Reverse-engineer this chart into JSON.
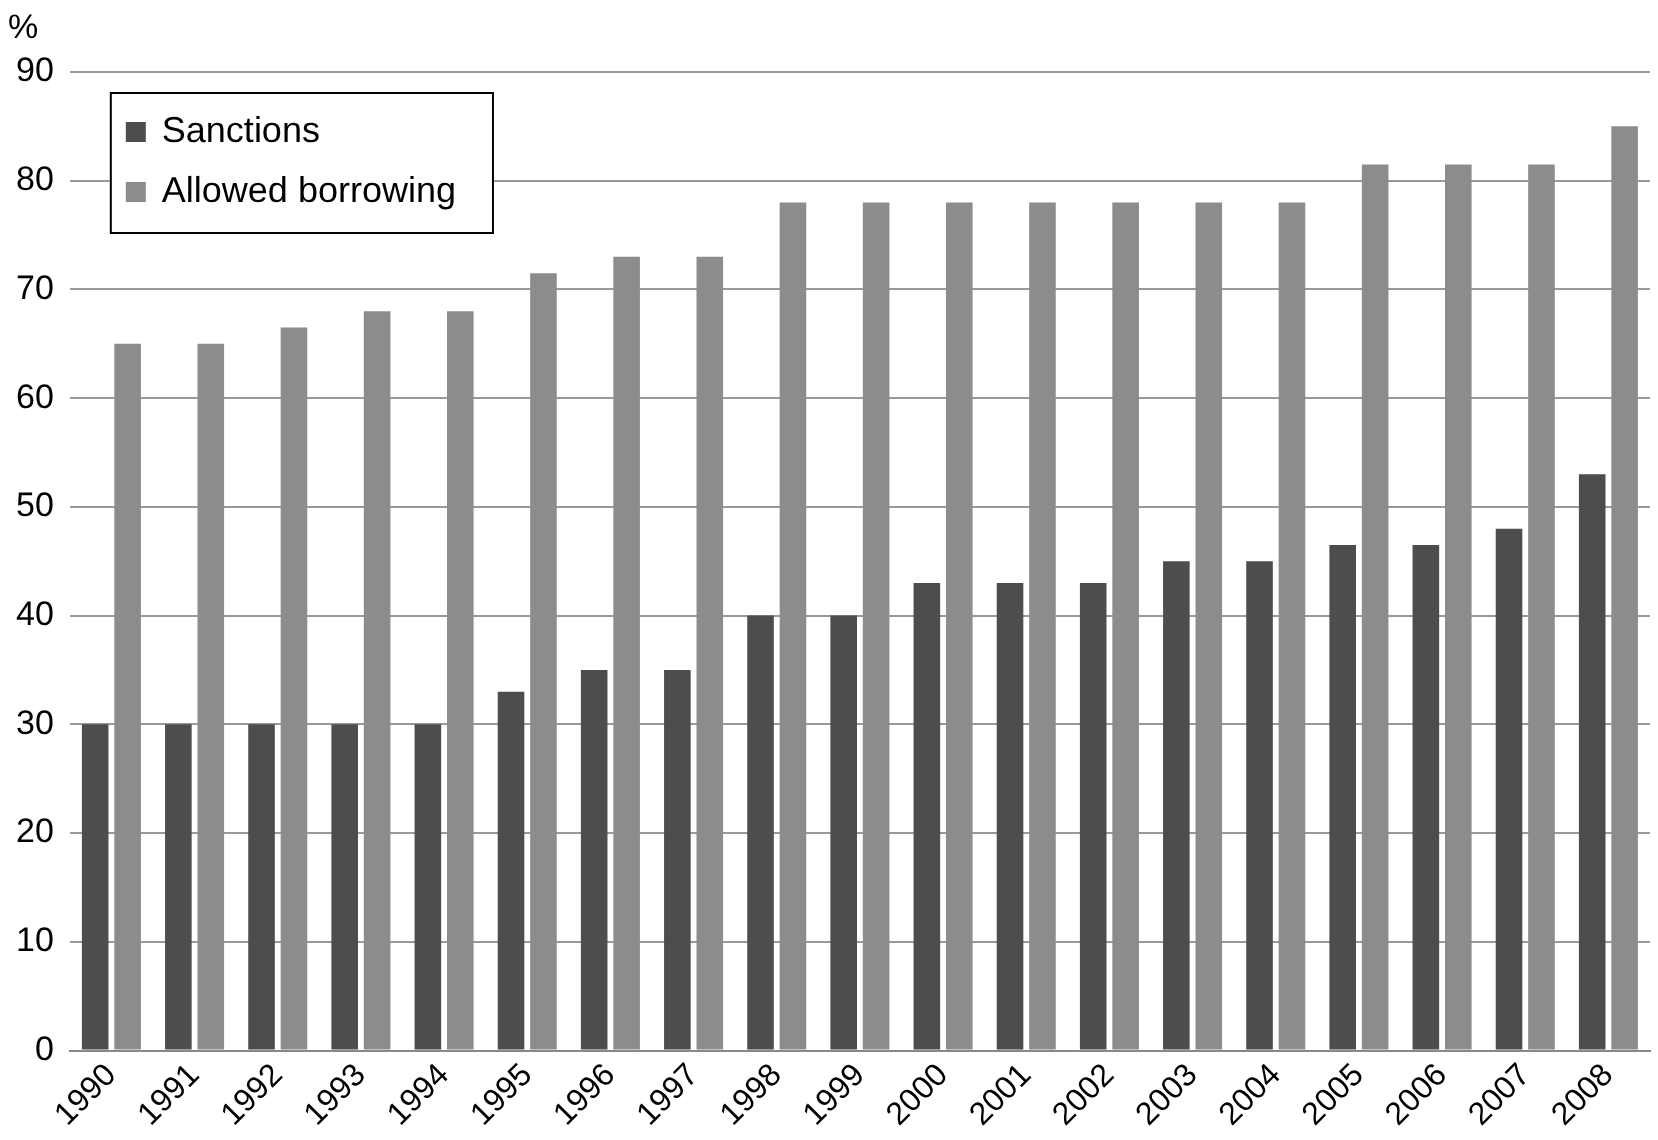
{
  "chart_data": {
    "type": "bar",
    "ylabel": "%",
    "categories": [
      "1990",
      "1991",
      "1992",
      "1993",
      "1994",
      "1995",
      "1996",
      "1997",
      "1998",
      "1999",
      "2000",
      "2001",
      "2002",
      "2003",
      "2004",
      "2005",
      "2006",
      "2007",
      "2008"
    ],
    "series": [
      {
        "name": "Sanctions",
        "color": "#4d4d4d",
        "values": [
          30,
          30,
          30,
          30,
          30,
          33,
          35,
          35,
          40,
          40,
          43,
          43,
          43,
          45,
          45,
          46.5,
          46.5,
          48,
          53
        ]
      },
      {
        "name": "Allowed borrowing",
        "color": "#8c8c8c",
        "values": [
          65,
          65,
          66.5,
          68,
          68,
          71.5,
          73,
          73,
          78,
          78,
          78,
          78,
          78,
          78,
          78,
          81.5,
          81.5,
          81.5,
          85
        ]
      }
    ],
    "ylim": [
      0,
      90
    ],
    "yticks": [
      0,
      10,
      20,
      30,
      40,
      50,
      60,
      70,
      80,
      90
    ],
    "grid": "y",
    "legend": "top left"
  }
}
